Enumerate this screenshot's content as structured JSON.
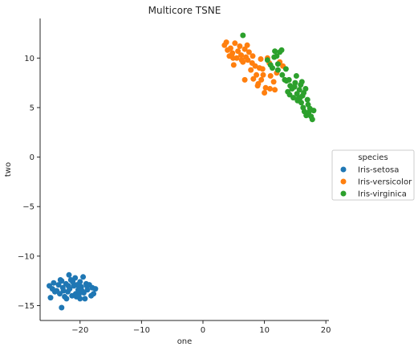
{
  "chart_data": {
    "type": "scatter",
    "title": "Multicore TSNE",
    "xlabel": "one",
    "ylabel": "two",
    "xlim": [
      -26.5,
      20.5
    ],
    "ylim": [
      -16.5,
      14
    ],
    "xticks": [
      -20,
      -10,
      0,
      10,
      20
    ],
    "yticks": [
      -15,
      -10,
      -5,
      0,
      5,
      10
    ],
    "xtick_labels": [
      "−20",
      "−10",
      "0",
      "10",
      "20"
    ],
    "ytick_labels": [
      "−15",
      "−10",
      "−5",
      "0",
      "5",
      "10"
    ],
    "grid": false,
    "legend": {
      "title": "species",
      "placement": "center-right"
    },
    "series": [
      {
        "name": "Iris-setosa",
        "color": "#1f77b4",
        "points": [
          [
            -25.0,
            -13.0
          ],
          [
            -24.8,
            -14.2
          ],
          [
            -24.5,
            -13.3
          ],
          [
            -24.3,
            -12.7
          ],
          [
            -23.8,
            -13.5
          ],
          [
            -23.5,
            -12.9
          ],
          [
            -23.3,
            -13.8
          ],
          [
            -23.0,
            -15.2
          ],
          [
            -23.0,
            -12.5
          ],
          [
            -22.8,
            -13.2
          ],
          [
            -22.5,
            -14.1
          ],
          [
            -22.3,
            -12.8
          ],
          [
            -22.0,
            -13.6
          ],
          [
            -21.8,
            -11.9
          ],
          [
            -21.7,
            -13.3
          ],
          [
            -21.5,
            -12.4
          ],
          [
            -21.3,
            -14.0
          ],
          [
            -21.0,
            -13.0
          ],
          [
            -20.8,
            -12.2
          ],
          [
            -20.7,
            -13.8
          ],
          [
            -20.5,
            -12.9
          ],
          [
            -20.3,
            -13.4
          ],
          [
            -20.0,
            -14.3
          ],
          [
            -20.0,
            -12.6
          ],
          [
            -19.8,
            -13.1
          ],
          [
            -19.5,
            -12.1
          ],
          [
            -19.4,
            -13.7
          ],
          [
            -19.2,
            -14.3
          ],
          [
            -19.0,
            -12.8
          ],
          [
            -18.8,
            -13.4
          ],
          [
            -18.5,
            -12.9
          ],
          [
            -18.2,
            -14.0
          ],
          [
            -18.0,
            -13.2
          ],
          [
            -17.8,
            -13.8
          ],
          [
            -17.5,
            -13.3
          ],
          [
            -24.1,
            -13.6
          ],
          [
            -22.7,
            -13.5
          ],
          [
            -21.2,
            -12.6
          ],
          [
            -20.2,
            -13.9
          ],
          [
            -19.7,
            -13.5
          ],
          [
            -22.2,
            -14.3
          ],
          [
            -23.2,
            -12.4
          ],
          [
            -21.9,
            -13.0
          ],
          [
            -18.9,
            -13.0
          ],
          [
            -20.6,
            -14.1
          ]
        ]
      },
      {
        "name": "Iris-versicolor",
        "color": "#ff7f0e",
        "points": [
          [
            3.5,
            11.3
          ],
          [
            3.8,
            11.6
          ],
          [
            4.0,
            10.8
          ],
          [
            4.3,
            10.2
          ],
          [
            4.5,
            11.0
          ],
          [
            4.8,
            10.5
          ],
          [
            5.0,
            9.3
          ],
          [
            5.2,
            11.5
          ],
          [
            5.5,
            10.0
          ],
          [
            5.7,
            10.7
          ],
          [
            6.0,
            11.2
          ],
          [
            6.2,
            10.3
          ],
          [
            6.5,
            9.6
          ],
          [
            6.8,
            10.9
          ],
          [
            7.0,
            10.1
          ],
          [
            7.2,
            11.3
          ],
          [
            7.5,
            10.6
          ],
          [
            7.8,
            8.8
          ],
          [
            8.0,
            9.5
          ],
          [
            8.2,
            7.9
          ],
          [
            8.5,
            9.2
          ],
          [
            8.7,
            8.3
          ],
          [
            9.0,
            7.4
          ],
          [
            9.2,
            9.0
          ],
          [
            9.5,
            7.8
          ],
          [
            9.7,
            8.9
          ],
          [
            10.0,
            6.5
          ],
          [
            10.2,
            7.0
          ],
          [
            10.5,
            10.0
          ],
          [
            10.8,
            9.5
          ],
          [
            11.0,
            8.2
          ],
          [
            11.5,
            7.6
          ],
          [
            12.0,
            8.5
          ],
          [
            12.5,
            9.6
          ],
          [
            13.0,
            9.2
          ],
          [
            6.8,
            7.8
          ],
          [
            7.3,
            9.8
          ],
          [
            8.1,
            10.2
          ],
          [
            9.4,
            9.9
          ],
          [
            10.9,
            6.9
          ],
          [
            9.8,
            8.3
          ],
          [
            11.7,
            6.8
          ],
          [
            4.9,
            10.0
          ],
          [
            6.3,
            9.8
          ],
          [
            8.9,
            7.2
          ]
        ]
      },
      {
        "name": "Iris-virginica",
        "color": "#2ca02c",
        "points": [
          [
            6.5,
            12.3
          ],
          [
            10.5,
            9.8
          ],
          [
            11.0,
            9.3
          ],
          [
            11.3,
            9.0
          ],
          [
            11.7,
            10.7
          ],
          [
            12.0,
            10.2
          ],
          [
            12.2,
            8.8
          ],
          [
            12.5,
            10.6
          ],
          [
            12.8,
            10.8
          ],
          [
            13.3,
            7.8
          ],
          [
            13.5,
            8.9
          ],
          [
            13.8,
            6.6
          ],
          [
            14.0,
            7.8
          ],
          [
            14.2,
            7.2
          ],
          [
            14.5,
            6.9
          ],
          [
            14.7,
            6.0
          ],
          [
            15.0,
            7.5
          ],
          [
            15.2,
            8.2
          ],
          [
            15.3,
            6.4
          ],
          [
            15.5,
            5.9
          ],
          [
            15.7,
            6.8
          ],
          [
            15.9,
            7.3
          ],
          [
            16.0,
            5.5
          ],
          [
            16.2,
            6.2
          ],
          [
            16.3,
            5.0
          ],
          [
            16.5,
            4.6
          ],
          [
            16.7,
            6.9
          ],
          [
            16.8,
            4.2
          ],
          [
            17.0,
            5.8
          ],
          [
            17.2,
            4.5
          ],
          [
            17.4,
            4.9
          ],
          [
            17.6,
            4.1
          ],
          [
            17.8,
            3.8
          ],
          [
            18.0,
            4.7
          ],
          [
            16.4,
            6.5
          ],
          [
            15.8,
            6.0
          ],
          [
            14.9,
            7.1
          ],
          [
            12.2,
            9.4
          ],
          [
            11.6,
            10.1
          ],
          [
            14.1,
            6.3
          ],
          [
            16.1,
            7.6
          ],
          [
            13.6,
            7.7
          ],
          [
            17.1,
            5.3
          ],
          [
            15.4,
            5.7
          ],
          [
            12.9,
            8.3
          ]
        ]
      }
    ]
  }
}
